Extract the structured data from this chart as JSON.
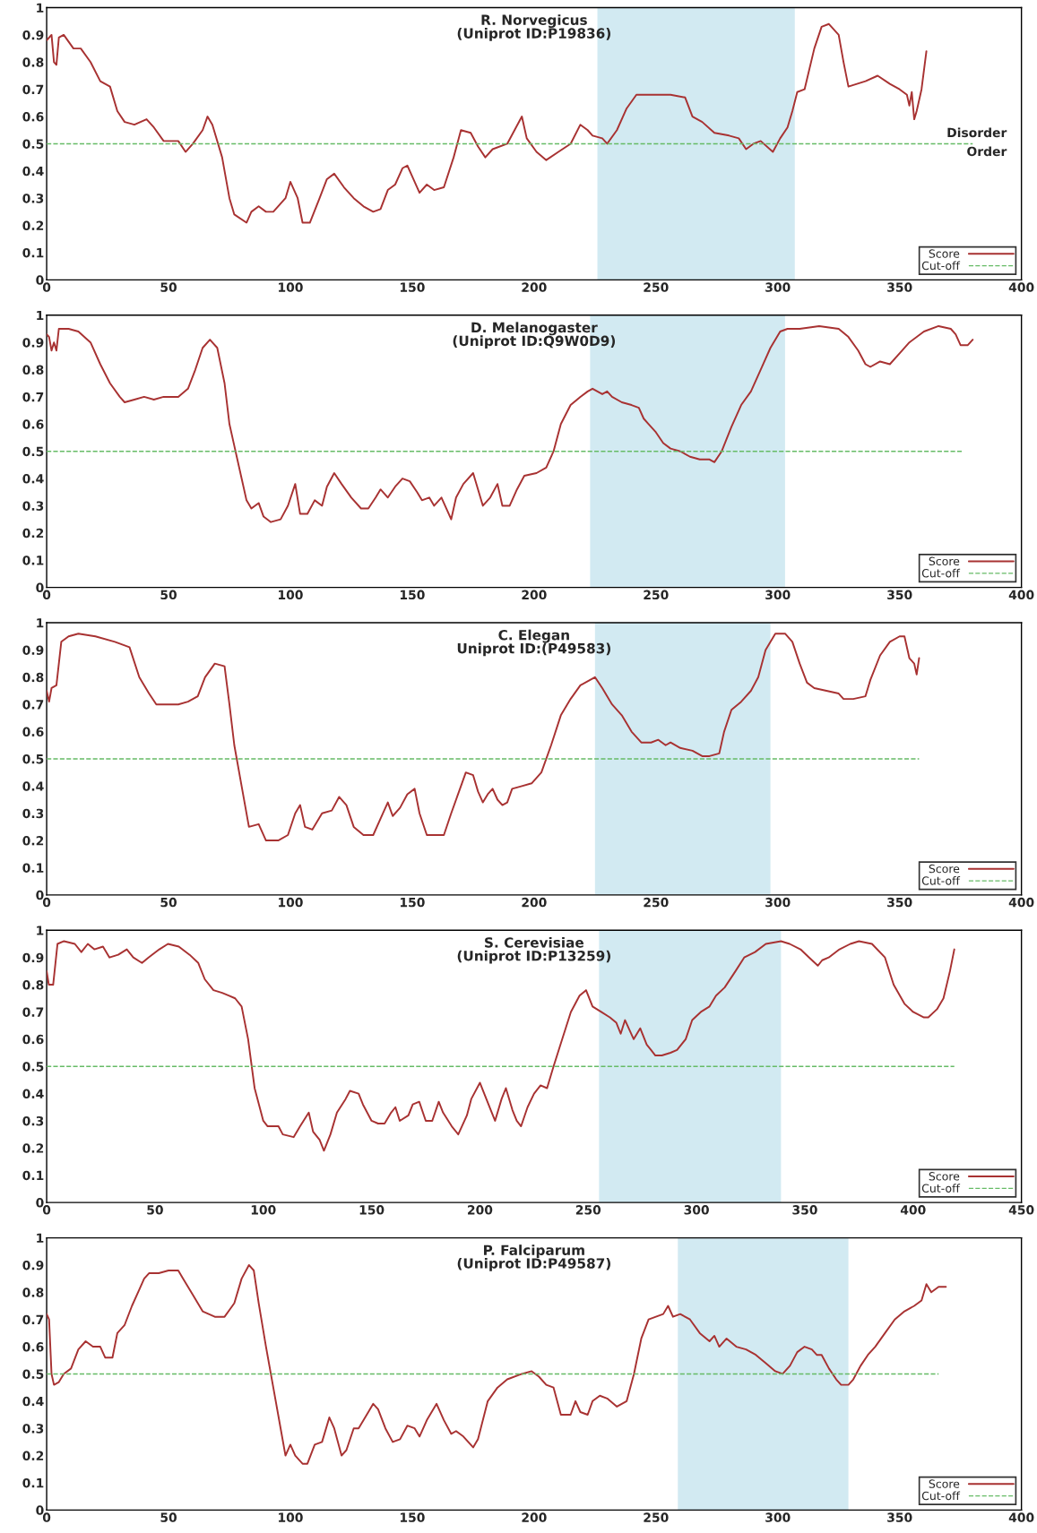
{
  "chart_data": [
    {
      "type": "line",
      "title": "R. Norvegicus\n(Uniprot ID:P19836)",
      "xlim": [
        0,
        400
      ],
      "xticks": [
        0,
        50,
        100,
        150,
        200,
        250,
        300,
        350,
        400
      ],
      "ylim": [
        0,
        1
      ],
      "yticks": [
        0,
        0.1,
        0.2,
        0.3,
        0.4,
        0.5,
        0.6,
        0.7,
        0.8,
        0.9,
        1
      ],
      "legend": "bottom right",
      "annotations": [
        "Disorder",
        "Order"
      ],
      "bands": [
        {
          "axis": "x",
          "from": 226,
          "to": 307,
          "color": "#d2eaf2"
        }
      ],
      "series": [
        {
          "name": "Score",
          "color": "#a83232",
          "line_style": "solid",
          "x": [
            0,
            2,
            3,
            4,
            5,
            7,
            11,
            14,
            18,
            22,
            26,
            29,
            32,
            36,
            41,
            44,
            48,
            54,
            57,
            60,
            64,
            66,
            68,
            72,
            75,
            77,
            82,
            84,
            87,
            90,
            93,
            98,
            100,
            103,
            105,
            108,
            112,
            115,
            118,
            122,
            126,
            130,
            134,
            137,
            140,
            143,
            146,
            148,
            150,
            153,
            156,
            159,
            163,
            167,
            170,
            174,
            177,
            180,
            183,
            189,
            192,
            195,
            197,
            201,
            205,
            210,
            215,
            219,
            222,
            224,
            228,
            230,
            234,
            238,
            242,
            248,
            256,
            262,
            265,
            269,
            274,
            280,
            284,
            287,
            290,
            293,
            298,
            301,
            304,
            306,
            308,
            311,
            315,
            318,
            321,
            325,
            327,
            329,
            336,
            341,
            346,
            350,
            353,
            354,
            355,
            356,
            357,
            359,
            361
          ],
          "values": [
            0.88,
            0.9,
            0.8,
            0.79,
            0.89,
            0.9,
            0.85,
            0.85,
            0.8,
            0.73,
            0.71,
            0.62,
            0.58,
            0.57,
            0.59,
            0.56,
            0.51,
            0.51,
            0.47,
            0.5,
            0.55,
            0.6,
            0.57,
            0.45,
            0.3,
            0.24,
            0.21,
            0.25,
            0.27,
            0.25,
            0.25,
            0.3,
            0.36,
            0.3,
            0.21,
            0.21,
            0.3,
            0.37,
            0.39,
            0.34,
            0.3,
            0.27,
            0.25,
            0.26,
            0.33,
            0.35,
            0.41,
            0.42,
            0.38,
            0.32,
            0.35,
            0.33,
            0.34,
            0.45,
            0.55,
            0.54,
            0.49,
            0.45,
            0.48,
            0.5,
            0.55,
            0.6,
            0.52,
            0.47,
            0.44,
            0.47,
            0.5,
            0.57,
            0.55,
            0.53,
            0.52,
            0.5,
            0.55,
            0.63,
            0.68,
            0.68,
            0.68,
            0.67,
            0.6,
            0.58,
            0.54,
            0.53,
            0.52,
            0.48,
            0.5,
            0.51,
            0.47,
            0.52,
            0.56,
            0.62,
            0.69,
            0.7,
            0.85,
            0.93,
            0.94,
            0.9,
            0.8,
            0.71,
            0.73,
            0.75,
            0.72,
            0.7,
            0.68,
            0.64,
            0.69,
            0.59,
            0.62,
            0.7,
            0.84
          ]
        },
        {
          "name": "Cut-off",
          "color": "#66bb66",
          "line_style": "dashed",
          "x": [
            0,
            380
          ],
          "values": [
            0.5,
            0.5
          ]
        }
      ]
    },
    {
      "type": "line",
      "title": "D. Melanogaster\n(Uniprot ID:Q9W0D9)",
      "xlim": [
        0,
        400
      ],
      "xticks": [
        0,
        50,
        100,
        150,
        200,
        250,
        300,
        350,
        400
      ],
      "ylim": [
        0,
        1
      ],
      "yticks": [
        0,
        0.1,
        0.2,
        0.3,
        0.4,
        0.5,
        0.6,
        0.7,
        0.8,
        0.9,
        1
      ],
      "legend": "bottom right",
      "bands": [
        {
          "axis": "x",
          "from": 223,
          "to": 303,
          "color": "#d2eaf2"
        }
      ],
      "series": [
        {
          "name": "Score",
          "color": "#a83232",
          "line_style": "solid",
          "x": [
            0,
            1,
            2,
            3,
            4,
            5,
            9,
            13,
            18,
            22,
            26,
            30,
            32,
            36,
            40,
            44,
            48,
            54,
            58,
            61,
            64,
            67,
            70,
            73,
            75,
            77,
            80,
            82,
            84,
            87,
            89,
            92,
            96,
            99,
            102,
            104,
            107,
            110,
            113,
            115,
            118,
            121,
            125,
            129,
            132,
            135,
            137,
            140,
            143,
            146,
            149,
            152,
            154,
            157,
            159,
            162,
            166,
            168,
            171,
            175,
            177,
            179,
            182,
            185,
            187,
            190,
            193,
            196,
            201,
            205,
            208,
            211,
            215,
            219,
            222,
            224,
            228,
            230,
            232,
            236,
            240,
            243,
            245,
            247,
            250,
            253,
            256,
            260,
            264,
            268,
            272,
            274,
            277,
            281,
            285,
            289,
            293,
            297,
            301,
            304,
            309,
            317,
            325,
            329,
            333,
            336,
            338,
            342,
            346,
            350,
            354,
            360,
            366,
            371,
            373,
            375,
            378,
            380
          ],
          "values": [
            0.93,
            0.92,
            0.87,
            0.9,
            0.87,
            0.95,
            0.95,
            0.94,
            0.9,
            0.82,
            0.75,
            0.7,
            0.68,
            0.69,
            0.7,
            0.69,
            0.7,
            0.7,
            0.73,
            0.8,
            0.88,
            0.91,
            0.88,
            0.75,
            0.6,
            0.52,
            0.4,
            0.32,
            0.29,
            0.31,
            0.26,
            0.24,
            0.25,
            0.3,
            0.38,
            0.27,
            0.27,
            0.32,
            0.3,
            0.37,
            0.42,
            0.38,
            0.33,
            0.29,
            0.29,
            0.33,
            0.36,
            0.33,
            0.37,
            0.4,
            0.39,
            0.35,
            0.32,
            0.33,
            0.3,
            0.33,
            0.25,
            0.33,
            0.38,
            0.42,
            0.36,
            0.3,
            0.33,
            0.38,
            0.3,
            0.3,
            0.36,
            0.41,
            0.42,
            0.44,
            0.5,
            0.6,
            0.67,
            0.7,
            0.72,
            0.73,
            0.71,
            0.72,
            0.7,
            0.68,
            0.67,
            0.66,
            0.62,
            0.6,
            0.57,
            0.53,
            0.51,
            0.5,
            0.48,
            0.47,
            0.47,
            0.46,
            0.5,
            0.59,
            0.67,
            0.72,
            0.8,
            0.88,
            0.94,
            0.95,
            0.95,
            0.96,
            0.95,
            0.92,
            0.87,
            0.82,
            0.81,
            0.83,
            0.82,
            0.86,
            0.9,
            0.94,
            0.96,
            0.95,
            0.93,
            0.89,
            0.89,
            0.91
          ]
        },
        {
          "name": "Cut-off",
          "color": "#66bb66",
          "line_style": "dashed",
          "x": [
            0,
            376
          ],
          "values": [
            0.5,
            0.5
          ]
        }
      ]
    },
    {
      "type": "line",
      "title": "C. Elegan\nUniprot ID:(P49583)",
      "xlim": [
        0,
        400
      ],
      "xticks": [
        0,
        50,
        100,
        150,
        200,
        250,
        300,
        350,
        400
      ],
      "ylim": [
        0,
        1
      ],
      "yticks": [
        0,
        0.1,
        0.2,
        0.3,
        0.4,
        0.5,
        0.6,
        0.7,
        0.8,
        0.9,
        1
      ],
      "legend": "bottom right",
      "bands": [
        {
          "axis": "x",
          "from": 225,
          "to": 297,
          "color": "#d2eaf2"
        }
      ],
      "series": [
        {
          "name": "Score",
          "color": "#a83232",
          "line_style": "solid",
          "x": [
            0,
            1,
            2,
            4,
            6,
            9,
            13,
            20,
            28,
            34,
            38,
            42,
            45,
            50,
            54,
            58,
            62,
            65,
            69,
            73,
            75,
            77,
            80,
            83,
            87,
            90,
            95,
            99,
            102,
            104,
            106,
            109,
            113,
            117,
            120,
            123,
            126,
            130,
            134,
            138,
            140,
            142,
            145,
            148,
            151,
            153,
            156,
            160,
            163,
            166,
            170,
            172,
            175,
            177,
            179,
            181,
            183,
            185,
            187,
            189,
            191,
            195,
            199,
            203,
            207,
            211,
            215,
            219,
            223,
            225,
            228,
            232,
            236,
            240,
            244,
            248,
            251,
            254,
            256,
            260,
            265,
            269,
            272,
            276,
            278,
            281,
            285,
            289,
            292,
            295,
            299,
            303,
            306,
            309,
            312,
            315,
            320,
            325,
            327,
            331,
            336,
            338,
            342,
            346,
            350,
            352,
            354,
            356,
            357,
            358
          ],
          "values": [
            0.75,
            0.71,
            0.76,
            0.77,
            0.93,
            0.95,
            0.96,
            0.95,
            0.93,
            0.91,
            0.8,
            0.74,
            0.7,
            0.7,
            0.7,
            0.71,
            0.73,
            0.8,
            0.85,
            0.84,
            0.7,
            0.55,
            0.4,
            0.25,
            0.26,
            0.2,
            0.2,
            0.22,
            0.3,
            0.33,
            0.25,
            0.24,
            0.3,
            0.31,
            0.36,
            0.33,
            0.25,
            0.22,
            0.22,
            0.3,
            0.34,
            0.29,
            0.32,
            0.37,
            0.39,
            0.3,
            0.22,
            0.22,
            0.22,
            0.3,
            0.4,
            0.45,
            0.44,
            0.38,
            0.34,
            0.37,
            0.39,
            0.35,
            0.33,
            0.34,
            0.39,
            0.4,
            0.41,
            0.45,
            0.55,
            0.66,
            0.72,
            0.77,
            0.79,
            0.8,
            0.76,
            0.7,
            0.66,
            0.6,
            0.56,
            0.56,
            0.57,
            0.55,
            0.56,
            0.54,
            0.53,
            0.51,
            0.51,
            0.52,
            0.6,
            0.68,
            0.71,
            0.75,
            0.8,
            0.9,
            0.96,
            0.96,
            0.93,
            0.85,
            0.78,
            0.76,
            0.75,
            0.74,
            0.72,
            0.72,
            0.73,
            0.79,
            0.88,
            0.93,
            0.95,
            0.95,
            0.87,
            0.85,
            0.81,
            0.87
          ]
        },
        {
          "name": "Cut-off",
          "color": "#66bb66",
          "line_style": "dashed",
          "x": [
            0,
            358
          ],
          "values": [
            0.5,
            0.5
          ]
        }
      ]
    },
    {
      "type": "line",
      "title": "S. Cerevisiae\n(Uniprot ID:P13259)",
      "xlim": [
        0,
        450
      ],
      "xticks": [
        0,
        50,
        100,
        150,
        200,
        250,
        300,
        350,
        400,
        450
      ],
      "ylim": [
        0,
        1
      ],
      "yticks": [
        0,
        0.1,
        0.2,
        0.3,
        0.4,
        0.5,
        0.6,
        0.7,
        0.8,
        0.9,
        1
      ],
      "legend": "bottom right",
      "bands": [
        {
          "axis": "x",
          "from": 255,
          "to": 339,
          "color": "#d2eaf2"
        }
      ],
      "series": [
        {
          "name": "Score",
          "color": "#a83232",
          "line_style": "solid",
          "x": [
            0,
            1,
            3,
            5,
            8,
            13,
            16,
            19,
            22,
            26,
            29,
            33,
            37,
            40,
            44,
            47,
            52,
            56,
            61,
            66,
            70,
            73,
            77,
            81,
            84,
            87,
            90,
            93,
            96,
            100,
            102,
            107,
            109,
            114,
            117,
            121,
            123,
            126,
            128,
            131,
            134,
            138,
            140,
            144,
            146,
            150,
            153,
            156,
            159,
            161,
            163,
            167,
            169,
            172,
            175,
            178,
            181,
            183,
            187,
            190,
            194,
            196,
            200,
            202,
            205,
            207,
            210,
            212,
            215,
            217,
            219,
            222,
            225,
            228,
            231,
            234,
            238,
            242,
            246,
            249,
            252,
            256,
            260,
            263,
            265,
            267,
            271,
            274,
            277,
            279,
            281,
            284,
            288,
            291,
            295,
            298,
            302,
            306,
            309,
            313,
            318,
            322,
            327,
            332,
            339,
            343,
            348,
            352,
            356,
            358,
            361,
            366,
            371,
            375,
            381,
            387,
            391,
            396,
            400,
            405,
            407,
            411,
            414,
            417,
            419
          ],
          "values": [
            0.85,
            0.8,
            0.8,
            0.95,
            0.96,
            0.95,
            0.92,
            0.95,
            0.93,
            0.94,
            0.9,
            0.91,
            0.93,
            0.9,
            0.88,
            0.9,
            0.93,
            0.95,
            0.94,
            0.91,
            0.88,
            0.82,
            0.78,
            0.77,
            0.76,
            0.75,
            0.72,
            0.6,
            0.42,
            0.3,
            0.28,
            0.28,
            0.25,
            0.24,
            0.28,
            0.33,
            0.26,
            0.23,
            0.19,
            0.25,
            0.33,
            0.38,
            0.41,
            0.4,
            0.36,
            0.3,
            0.29,
            0.29,
            0.33,
            0.35,
            0.3,
            0.32,
            0.36,
            0.37,
            0.3,
            0.3,
            0.37,
            0.33,
            0.28,
            0.25,
            0.32,
            0.38,
            0.44,
            0.4,
            0.34,
            0.3,
            0.38,
            0.42,
            0.34,
            0.3,
            0.28,
            0.35,
            0.4,
            0.43,
            0.42,
            0.5,
            0.6,
            0.7,
            0.76,
            0.78,
            0.72,
            0.7,
            0.68,
            0.66,
            0.62,
            0.67,
            0.6,
            0.64,
            0.58,
            0.56,
            0.54,
            0.54,
            0.55,
            0.56,
            0.6,
            0.67,
            0.7,
            0.72,
            0.76,
            0.79,
            0.85,
            0.9,
            0.92,
            0.95,
            0.96,
            0.95,
            0.93,
            0.9,
            0.87,
            0.89,
            0.9,
            0.93,
            0.95,
            0.96,
            0.95,
            0.9,
            0.8,
            0.73,
            0.7,
            0.68,
            0.68,
            0.71,
            0.75,
            0.85,
            0.93
          ]
        },
        {
          "name": "Cut-off",
          "color": "#66bb66",
          "line_style": "dashed",
          "x": [
            0,
            419
          ],
          "values": [
            0.5,
            0.5
          ]
        }
      ]
    },
    {
      "type": "line",
      "title": "P. Falciparum\n(Uniprot ID:P49587)",
      "xlim": [
        0,
        400
      ],
      "xticks": [
        0,
        50,
        100,
        150,
        200,
        250,
        300,
        350,
        400
      ],
      "ylim": [
        0,
        1
      ],
      "yticks": [
        0,
        0.1,
        0.2,
        0.3,
        0.4,
        0.5,
        0.6,
        0.7,
        0.8,
        0.9,
        1
      ],
      "legend": "bottom right",
      "bands": [
        {
          "axis": "x",
          "from": 259,
          "to": 329,
          "color": "#d2eaf2"
        }
      ],
      "series": [
        {
          "name": "Score",
          "color": "#a83232",
          "line_style": "solid",
          "x": [
            0,
            1,
            2,
            3,
            5,
            7,
            10,
            13,
            16,
            19,
            22,
            24,
            27,
            29,
            32,
            35,
            38,
            40,
            42,
            46,
            50,
            54,
            56,
            60,
            64,
            69,
            73,
            77,
            80,
            83,
            85,
            87,
            90,
            93,
            96,
            98,
            100,
            102,
            105,
            107,
            110,
            113,
            116,
            118,
            121,
            123,
            126,
            128,
            132,
            134,
            136,
            139,
            142,
            145,
            148,
            151,
            153,
            156,
            160,
            163,
            166,
            168,
            171,
            175,
            177,
            181,
            185,
            189,
            195,
            199,
            202,
            205,
            208,
            211,
            215,
            217,
            219,
            222,
            224,
            227,
            230,
            234,
            238,
            241,
            244,
            247,
            250,
            253,
            255,
            257,
            260,
            264,
            268,
            272,
            274,
            276,
            279,
            283,
            287,
            291,
            295,
            299,
            302,
            305,
            308,
            311,
            314,
            316,
            318,
            321,
            324,
            326,
            329,
            331,
            334,
            337,
            340,
            344,
            348,
            352,
            356,
            359,
            361,
            363,
            366,
            369
          ],
          "values": [
            0.72,
            0.7,
            0.5,
            0.46,
            0.47,
            0.5,
            0.52,
            0.59,
            0.62,
            0.6,
            0.6,
            0.56,
            0.56,
            0.65,
            0.68,
            0.75,
            0.81,
            0.85,
            0.87,
            0.87,
            0.88,
            0.88,
            0.85,
            0.79,
            0.73,
            0.71,
            0.71,
            0.76,
            0.85,
            0.9,
            0.88,
            0.76,
            0.6,
            0.45,
            0.3,
            0.2,
            0.24,
            0.2,
            0.17,
            0.17,
            0.24,
            0.25,
            0.34,
            0.3,
            0.2,
            0.22,
            0.3,
            0.3,
            0.36,
            0.39,
            0.37,
            0.3,
            0.25,
            0.26,
            0.31,
            0.3,
            0.27,
            0.33,
            0.39,
            0.33,
            0.28,
            0.29,
            0.27,
            0.23,
            0.26,
            0.4,
            0.45,
            0.48,
            0.5,
            0.51,
            0.49,
            0.46,
            0.45,
            0.35,
            0.35,
            0.4,
            0.36,
            0.35,
            0.4,
            0.42,
            0.41,
            0.38,
            0.4,
            0.5,
            0.63,
            0.7,
            0.71,
            0.72,
            0.75,
            0.71,
            0.72,
            0.7,
            0.65,
            0.62,
            0.64,
            0.6,
            0.63,
            0.6,
            0.59,
            0.57,
            0.54,
            0.51,
            0.5,
            0.53,
            0.58,
            0.6,
            0.59,
            0.57,
            0.57,
            0.52,
            0.48,
            0.46,
            0.46,
            0.48,
            0.53,
            0.57,
            0.6,
            0.65,
            0.7,
            0.73,
            0.75,
            0.77,
            0.83,
            0.8,
            0.82,
            0.82
          ]
        },
        {
          "name": "Cut-off",
          "color": "#66bb66",
          "line_style": "dashed",
          "x": [
            0,
            366
          ],
          "values": [
            0.5,
            0.5
          ]
        }
      ]
    }
  ]
}
